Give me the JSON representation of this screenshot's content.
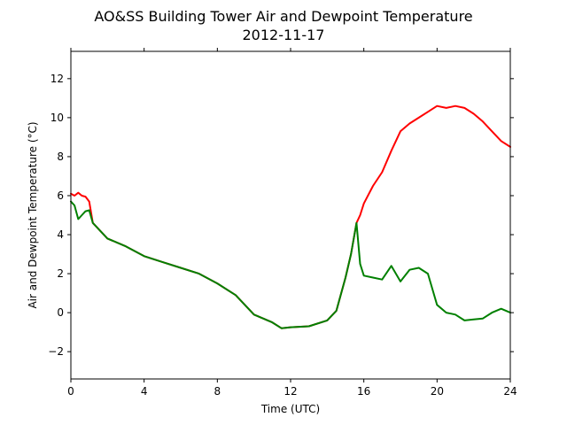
{
  "chart_data": {
    "type": "line",
    "title": "AO&SS Building Tower Air and Dewpoint Temperature",
    "subtitle": "2012-11-17",
    "xlabel": "Time (UTC)",
    "ylabel": "Air and Dewpoint Temperature (°C)",
    "xlim": [
      0,
      24
    ],
    "ylim": [
      -3.4,
      13.4
    ],
    "xticks": [
      0,
      4,
      8,
      12,
      16,
      20,
      24
    ],
    "yticks": [
      -2,
      0,
      2,
      4,
      6,
      8,
      10,
      12
    ],
    "grid": false,
    "series": [
      {
        "color": "#ff0000",
        "x": [
          0,
          0.2,
          0.4,
          0.6,
          0.8,
          1.0,
          1.2,
          1.5,
          2,
          3,
          4,
          5,
          6,
          7,
          8,
          9,
          10,
          11,
          11.5,
          12,
          13,
          14,
          14.5,
          15,
          15.3,
          15.6,
          15.8,
          16,
          16.5,
          17,
          17.5,
          18,
          18.5,
          19,
          19.5,
          20,
          20.5,
          21,
          21.5,
          22,
          22.5,
          23,
          23.5,
          24
        ],
        "y": [
          6.1,
          6.0,
          6.15,
          6.0,
          5.95,
          5.7,
          4.6,
          4.3,
          3.8,
          3.4,
          2.9,
          2.6,
          2.3,
          2.0,
          1.5,
          0.9,
          -0.1,
          -0.5,
          -0.8,
          -0.75,
          -0.7,
          -0.4,
          0.1,
          1.8,
          3.0,
          4.6,
          5.0,
          5.6,
          6.5,
          7.2,
          8.3,
          9.3,
          9.7,
          10.0,
          10.3,
          10.6,
          10.5,
          10.6,
          10.5,
          10.2,
          9.8,
          9.3,
          8.8,
          8.5
        ]
      },
      {
        "color": "#008000",
        "x": [
          0,
          0.2,
          0.4,
          0.6,
          0.8,
          1.0,
          1.2,
          1.5,
          2,
          3,
          4,
          5,
          6,
          7,
          8,
          9,
          10,
          11,
          11.5,
          12,
          13,
          14,
          14.5,
          15,
          15.3,
          15.6,
          15.8,
          16,
          16.5,
          17,
          17.5,
          18,
          18.5,
          19,
          19.5,
          20,
          20.5,
          21,
          21.5,
          22,
          22.5,
          23,
          23.5,
          24
        ],
        "y": [
          5.7,
          5.5,
          4.8,
          5.0,
          5.2,
          5.25,
          4.6,
          4.3,
          3.8,
          3.4,
          2.9,
          2.6,
          2.3,
          2.0,
          1.5,
          0.9,
          -0.1,
          -0.5,
          -0.8,
          -0.75,
          -0.7,
          -0.4,
          0.1,
          1.8,
          3.0,
          4.6,
          2.5,
          1.9,
          1.8,
          1.7,
          2.4,
          1.6,
          2.2,
          2.3,
          2.0,
          0.4,
          0.0,
          -0.1,
          -0.4,
          -0.35,
          -0.3,
          0.0,
          0.2,
          0.0
        ]
      }
    ]
  }
}
